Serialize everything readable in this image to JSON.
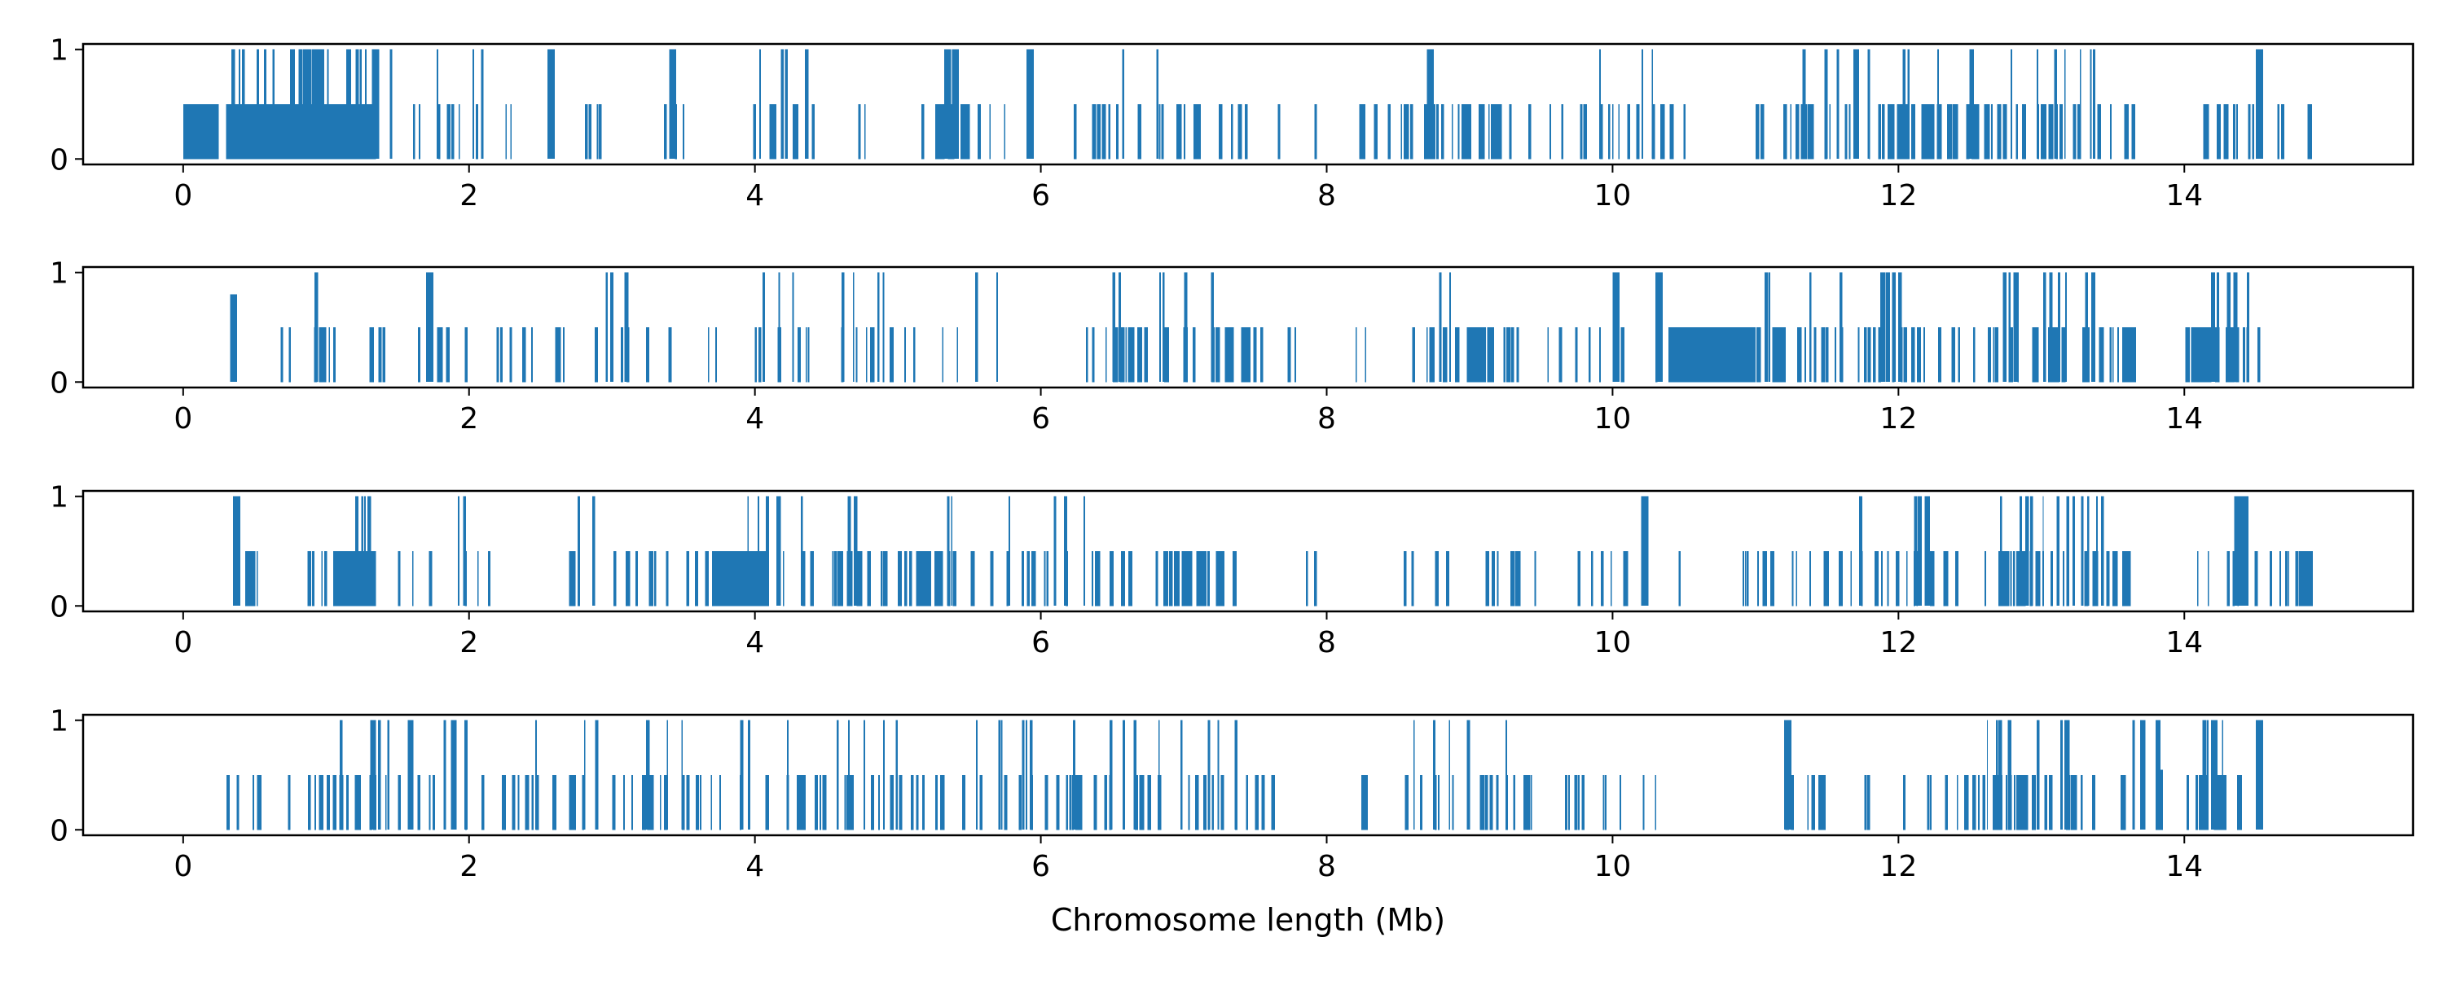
{
  "chart_data": {
    "type": "bar",
    "layout": "4 stacked panels sharing x range",
    "xlabel": "Chromosome length (Mb)",
    "xlim": [
      -0.7,
      15.6
    ],
    "x_ticks": [
      0,
      2,
      4,
      6,
      8,
      10,
      12,
      14
    ],
    "x_tick_labels": [
      "0",
      "2",
      "4",
      "6",
      "8",
      "10",
      "12",
      "14"
    ],
    "ylim": [
      -0.05,
      1.05
    ],
    "y_ticks": [
      0,
      1
    ],
    "y_tick_labels": [
      "0",
      "1"
    ],
    "grid": false,
    "bar_color": "#1f77b4",
    "value_levels": [
      0,
      0.5,
      1
    ],
    "panels": [
      {
        "blocks": [
          [
            0.0,
            0.25,
            0.5,
            0.95
          ],
          [
            0.25,
            1.35,
            1.0,
            0.55
          ],
          [
            0.3,
            1.35,
            0.5,
            0.9
          ],
          [
            1.38,
            1.55,
            1.0,
            0.2
          ],
          [
            1.55,
            2.1,
            0.5,
            0.3
          ],
          [
            1.6,
            2.1,
            1.0,
            0.1
          ],
          [
            2.1,
            2.3,
            0.5,
            0.1
          ],
          [
            2.55,
            2.6,
            1.0,
            0.9
          ],
          [
            2.6,
            3.3,
            0.5,
            0.1
          ],
          [
            3.35,
            3.5,
            0.5,
            0.4
          ],
          [
            3.4,
            3.45,
            1.0,
            1.0
          ],
          [
            3.85,
            4.5,
            0.5,
            0.25
          ],
          [
            3.9,
            4.45,
            1.0,
            0.2
          ],
          [
            4.6,
            5.2,
            0.5,
            0.1
          ],
          [
            5.25,
            5.5,
            0.5,
            0.7
          ],
          [
            5.3,
            5.45,
            1.0,
            0.7
          ],
          [
            5.5,
            5.95,
            0.5,
            0.15
          ],
          [
            5.9,
            5.95,
            1.0,
            1.0
          ],
          [
            6.2,
            7.5,
            0.5,
            0.3
          ],
          [
            6.4,
            7.3,
            1.0,
            0.05
          ],
          [
            7.5,
            8.0,
            0.5,
            0.05
          ],
          [
            8.2,
            8.5,
            0.5,
            0.3
          ],
          [
            8.5,
            9.2,
            0.5,
            0.7
          ],
          [
            8.7,
            8.75,
            1.0,
            1.0
          ],
          [
            9.2,
            9.7,
            0.5,
            0.2
          ],
          [
            9.7,
            10.5,
            0.5,
            0.4
          ],
          [
            9.9,
            10.3,
            1.0,
            0.15
          ],
          [
            11.0,
            11.8,
            0.5,
            0.4
          ],
          [
            11.3,
            11.8,
            1.0,
            0.25
          ],
          [
            11.85,
            12.6,
            0.5,
            0.8
          ],
          [
            12.0,
            12.6,
            1.0,
            0.15
          ],
          [
            12.6,
            13.7,
            0.5,
            0.4
          ],
          [
            12.7,
            13.4,
            1.0,
            0.2
          ],
          [
            14.1,
            14.7,
            0.5,
            0.4
          ],
          [
            14.5,
            14.55,
            1.0,
            1.0
          ],
          [
            14.8,
            14.9,
            0.5,
            0.6
          ]
        ]
      },
      {
        "blocks": [
          [
            0.3,
            0.35,
            0.8,
            0.8
          ],
          [
            0.45,
            0.75,
            0.5,
            0.2
          ],
          [
            0.85,
            1.1,
            0.5,
            0.4
          ],
          [
            0.9,
            1.0,
            1.0,
            0.4
          ],
          [
            1.3,
            2.35,
            0.5,
            0.3
          ],
          [
            1.7,
            1.75,
            1.0,
            1.0
          ],
          [
            2.35,
            3.4,
            0.5,
            0.25
          ],
          [
            2.9,
            3.1,
            1.0,
            0.3
          ],
          [
            3.5,
            3.8,
            0.5,
            0.15
          ],
          [
            3.8,
            4.4,
            0.5,
            0.2
          ],
          [
            3.85,
            4.4,
            1.0,
            0.15
          ],
          [
            4.6,
            5.05,
            0.5,
            0.4
          ],
          [
            4.6,
            4.95,
            1.0,
            0.2
          ],
          [
            5.1,
            5.7,
            0.5,
            0.1
          ],
          [
            5.25,
            5.9,
            1.0,
            0.05
          ],
          [
            6.2,
            7.6,
            0.5,
            0.5
          ],
          [
            6.4,
            7.2,
            1.0,
            0.15
          ],
          [
            7.6,
            7.8,
            0.5,
            0.15
          ],
          [
            8.0,
            8.3,
            0.5,
            0.05
          ],
          [
            8.55,
            9.3,
            0.5,
            0.6
          ],
          [
            8.65,
            9.0,
            1.0,
            0.1
          ],
          [
            9.3,
            9.9,
            0.5,
            0.15
          ],
          [
            9.9,
            10.4,
            0.5,
            0.2
          ],
          [
            10.0,
            10.05,
            1.0,
            1.0
          ],
          [
            10.3,
            10.35,
            1.0,
            1.0
          ],
          [
            10.4,
            11.0,
            0.5,
            0.95
          ],
          [
            11.0,
            11.6,
            0.5,
            0.6
          ],
          [
            11.05,
            11.6,
            1.0,
            0.15
          ],
          [
            11.65,
            12.8,
            0.5,
            0.35
          ],
          [
            11.8,
            12.0,
            1.0,
            0.5
          ],
          [
            12.6,
            13.65,
            0.5,
            0.6
          ],
          [
            12.65,
            13.45,
            1.0,
            0.3
          ],
          [
            14.0,
            14.55,
            0.5,
            0.8
          ],
          [
            14.1,
            14.45,
            1.0,
            0.45
          ]
        ]
      },
      {
        "blocks": [
          [
            0.3,
            0.6,
            0.5,
            0.4
          ],
          [
            0.35,
            0.4,
            1.0,
            1.0
          ],
          [
            0.85,
            1.1,
            0.5,
            0.3
          ],
          [
            1.05,
            1.35,
            0.5,
            0.85
          ],
          [
            1.1,
            1.35,
            1.0,
            0.4
          ],
          [
            1.4,
            2.2,
            0.5,
            0.15
          ],
          [
            1.85,
            2.2,
            1.0,
            0.1
          ],
          [
            2.65,
            3.2,
            0.5,
            0.3
          ],
          [
            2.7,
            2.9,
            1.0,
            0.3
          ],
          [
            3.25,
            3.7,
            0.5,
            0.3
          ],
          [
            3.7,
            4.1,
            0.5,
            0.9
          ],
          [
            3.9,
            4.4,
            1.0,
            0.25
          ],
          [
            4.1,
            4.6,
            0.5,
            0.2
          ],
          [
            4.55,
            5.3,
            0.5,
            0.6
          ],
          [
            4.6,
            4.7,
            1.0,
            0.6
          ],
          [
            5.0,
            5.7,
            1.0,
            0.05
          ],
          [
            5.3,
            6.4,
            0.5,
            0.35
          ],
          [
            5.7,
            6.4,
            1.0,
            0.15
          ],
          [
            6.4,
            7.4,
            0.5,
            0.5
          ],
          [
            7.45,
            8.0,
            0.5,
            0.05
          ],
          [
            8.2,
            9.5,
            0.5,
            0.2
          ],
          [
            9.65,
            10.5,
            0.5,
            0.2
          ],
          [
            10.2,
            10.25,
            1.0,
            1.0
          ],
          [
            10.85,
            11.3,
            0.5,
            0.4
          ],
          [
            11.35,
            12.0,
            0.5,
            0.4
          ],
          [
            11.5,
            11.75,
            1.0,
            0.15
          ],
          [
            12.05,
            12.6,
            0.5,
            0.35
          ],
          [
            12.1,
            12.2,
            1.0,
            0.6
          ],
          [
            12.6,
            13.65,
            0.5,
            0.6
          ],
          [
            12.6,
            13.5,
            1.0,
            0.3
          ],
          [
            13.8,
            14.4,
            0.5,
            0.15
          ],
          [
            14.35,
            14.45,
            1.0,
            1.0
          ],
          [
            14.45,
            14.9,
            0.5,
            0.3
          ],
          [
            14.8,
            14.9,
            0.5,
            0.9
          ]
        ]
      },
      {
        "blocks": [
          [
            0.3,
            0.4,
            0.5,
            0.3
          ],
          [
            0.4,
            0.9,
            0.5,
            0.2
          ],
          [
            0.9,
            1.55,
            0.5,
            0.45
          ],
          [
            1.0,
            1.6,
            1.0,
            0.25
          ],
          [
            1.6,
            2.5,
            0.5,
            0.3
          ],
          [
            1.8,
            2.5,
            1.0,
            0.15
          ],
          [
            2.5,
            3.5,
            0.5,
            0.3
          ],
          [
            2.7,
            3.5,
            1.0,
            0.15
          ],
          [
            3.5,
            4.3,
            0.5,
            0.25
          ],
          [
            3.8,
            4.3,
            1.0,
            0.1
          ],
          [
            4.3,
            5.1,
            0.5,
            0.4
          ],
          [
            4.4,
            5.1,
            1.0,
            0.15
          ],
          [
            5.1,
            6.2,
            0.5,
            0.3
          ],
          [
            5.25,
            6.1,
            1.0,
            0.15
          ],
          [
            6.2,
            7.5,
            0.5,
            0.35
          ],
          [
            6.2,
            7.5,
            1.0,
            0.15
          ],
          [
            7.5,
            7.75,
            0.5,
            0.2
          ],
          [
            8.2,
            8.3,
            0.5,
            0.8
          ],
          [
            8.5,
            9.8,
            0.5,
            0.35
          ],
          [
            8.6,
            9.5,
            1.0,
            0.1
          ],
          [
            9.8,
            10.4,
            0.5,
            0.15
          ],
          [
            11.15,
            11.5,
            0.5,
            0.4
          ],
          [
            11.2,
            11.25,
            1.0,
            1.0
          ],
          [
            11.5,
            12.4,
            0.5,
            0.15
          ],
          [
            12.4,
            13.2,
            0.5,
            0.6
          ],
          [
            12.6,
            13.2,
            1.0,
            0.3
          ],
          [
            13.2,
            13.6,
            0.5,
            0.3
          ],
          [
            13.6,
            13.8,
            1.0,
            0.6
          ],
          [
            13.8,
            13.85,
            0.55,
            1.0
          ],
          [
            14.0,
            14.4,
            0.5,
            0.7
          ],
          [
            14.1,
            14.35,
            1.0,
            0.45
          ],
          [
            14.5,
            14.55,
            1.0,
            1.0
          ]
        ]
      }
    ]
  }
}
